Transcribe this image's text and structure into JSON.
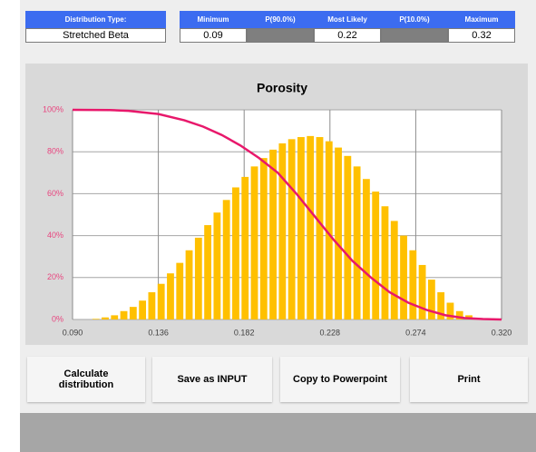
{
  "header": {
    "distribution_label": "Distribution Type:",
    "distribution_value": "Stretched Beta",
    "columns": [
      "Minimum",
      "P(90.0%)",
      "Most Likely",
      "P(10.0%)",
      "Maximum"
    ],
    "minimum": 0.09,
    "most_likely": 0.22,
    "maximum": 0.32
  },
  "chart_data": {
    "type": "histogram",
    "title": "Porosity",
    "bins": [
      0.09,
      0.095,
      0.1,
      0.105,
      0.11,
      0.115,
      0.12,
      0.125,
      0.13,
      0.135,
      0.14,
      0.145,
      0.15,
      0.155,
      0.16,
      0.165,
      0.17,
      0.175,
      0.18,
      0.185,
      0.19,
      0.195,
      0.2,
      0.205,
      0.21,
      0.215,
      0.22,
      0.225,
      0.23,
      0.235,
      0.24,
      0.245,
      0.25,
      0.255,
      0.26,
      0.265,
      0.27,
      0.275,
      0.28,
      0.285,
      0.29,
      0.295,
      0.3,
      0.305,
      0.31,
      0.315,
      0.32
    ],
    "values": [
      0,
      0,
      0.3,
      1,
      2,
      4,
      6,
      9,
      13,
      17,
      22,
      27,
      33,
      39,
      45,
      51,
      57,
      63,
      68,
      73,
      77,
      81,
      84,
      86,
      87,
      87.5,
      87,
      85,
      82,
      78,
      73,
      67,
      61,
      54,
      47,
      40,
      33,
      26,
      19,
      13,
      8,
      4,
      2,
      0.5,
      0,
      0
    ],
    "color": "#ffc000",
    "line": {
      "color": "#e8186b",
      "x": [
        0.09,
        0.11,
        0.12,
        0.136,
        0.15,
        0.16,
        0.17,
        0.18,
        0.19,
        0.2,
        0.21,
        0.22,
        0.23,
        0.24,
        0.25,
        0.26,
        0.27,
        0.28,
        0.29,
        0.3,
        0.31,
        0.32
      ],
      "values": [
        100,
        99.9,
        99.5,
        98,
        95,
        92,
        88,
        83,
        77,
        70,
        60,
        49,
        38,
        28,
        20,
        13,
        8,
        4.5,
        2,
        0.7,
        0.2,
        0
      ]
    },
    "xlim": [
      0.09,
      0.32
    ],
    "xticks": [
      {
        "value": 0.09,
        "label": "0.090"
      },
      0.136,
      0.182,
      0.228,
      0.274,
      {
        "value": 0.32,
        "label": "0.320"
      }
    ],
    "ylim": [
      0,
      100
    ],
    "yticks": [
      {
        "value": 0,
        "label": "0%"
      },
      {
        "value": 20,
        "label": "20%"
      },
      {
        "value": 40,
        "label": "40%"
      },
      {
        "value": 60,
        "label": "60%"
      },
      {
        "value": 80,
        "label": "80%"
      },
      {
        "value": 100,
        "label": "100%"
      }
    ],
    "grid": true
  },
  "buttons": [
    "Calculate distribution",
    "Save as INPUT",
    "Copy to Powerpoint",
    "Print"
  ]
}
